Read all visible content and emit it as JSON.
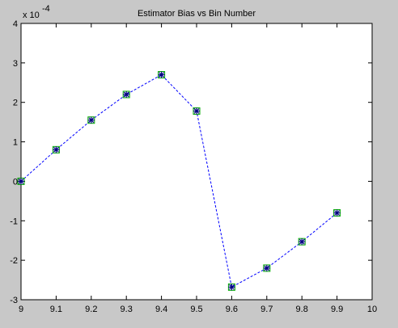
{
  "chart_data": {
    "type": "line",
    "title": "Estimator Bias vs Bin Number",
    "xlabel": "",
    "ylabel": "",
    "xlim": [
      9,
      10
    ],
    "ylim": [
      -3,
      4
    ],
    "y_scale_label": "x 10",
    "y_scale_exponent": "-4",
    "xticks": [
      "9",
      "9.1",
      "9.2",
      "9.3",
      "9.4",
      "9.5",
      "9.6",
      "9.7",
      "9.8",
      "9.9",
      "10"
    ],
    "yticks": [
      "-3",
      "-2",
      "-1",
      "0",
      "1",
      "2",
      "3",
      "4"
    ],
    "grid": false,
    "legend": "none",
    "series": [
      {
        "x": [
          9.0,
          9.1,
          9.2,
          9.3,
          9.4,
          9.5,
          9.6,
          9.7,
          9.8,
          9.9
        ],
        "y": [
          0.0,
          0.8,
          1.55,
          2.2,
          2.7,
          1.78,
          -2.68,
          -2.2,
          -1.53,
          -0.8
        ],
        "line_style": "dashed",
        "line_color": "#0000ff",
        "marker": "asterisk",
        "marker_color": "#000080",
        "marker_edge_color": "#00aa00"
      }
    ]
  },
  "colors": {
    "figure_bg": "#c8c8c8",
    "axes_bg": "#ffffff",
    "axes_edge": "#000000"
  }
}
